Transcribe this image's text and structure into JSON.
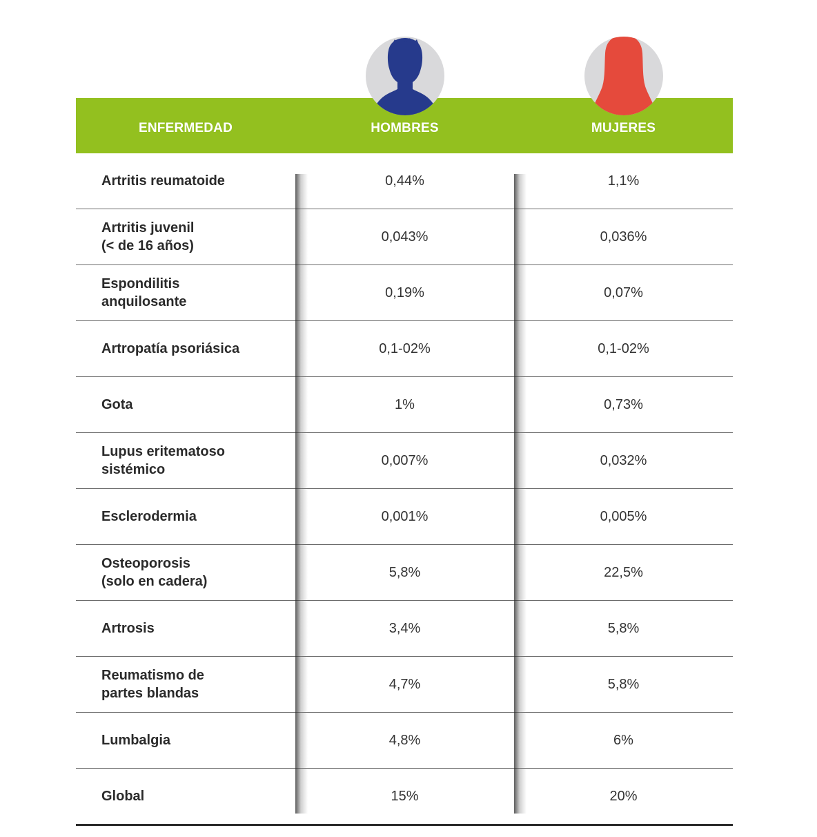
{
  "header": {
    "disease_label": "ENFERMEDAD",
    "men_label": "HOMBRES",
    "women_label": "MUJERES",
    "band_color": "#93c01f",
    "men_icon_color": "#263a8c",
    "women_icon_color": "#e54a3c"
  },
  "rows": [
    {
      "disease": "Artritis reumatoide",
      "men": "0,44%",
      "women": "1,1%"
    },
    {
      "disease": "Artritis juvenil\n(< de 16 años)",
      "men": "0,043%",
      "women": "0,036%"
    },
    {
      "disease": "Espondilitis\nanquilosante",
      "men": "0,19%",
      "women": "0,07%"
    },
    {
      "disease": "Artropatía psoriásica",
      "men": "0,1-02%",
      "women": "0,1-02%"
    },
    {
      "disease": "Gota",
      "men": "1%",
      "women": "0,73%"
    },
    {
      "disease": "Lupus eritematoso\nsistémico",
      "men": "0,007%",
      "women": "0,032%"
    },
    {
      "disease": "Esclerodermia",
      "men": "0,001%",
      "women": "0,005%"
    },
    {
      "disease": "Osteoporosis\n(solo en cadera)",
      "men": "5,8%",
      "women": "22,5%"
    },
    {
      "disease": "Artrosis",
      "men": "3,4%",
      "women": "5,8%"
    },
    {
      "disease": "Reumatismo de\npartes blandas",
      "men": "4,7%",
      "women": "5,8%"
    },
    {
      "disease": "Lumbalgia",
      "men": "4,8%",
      "women": "6%"
    },
    {
      "disease": "Global",
      "men": "15%",
      "women": "20%"
    }
  ]
}
